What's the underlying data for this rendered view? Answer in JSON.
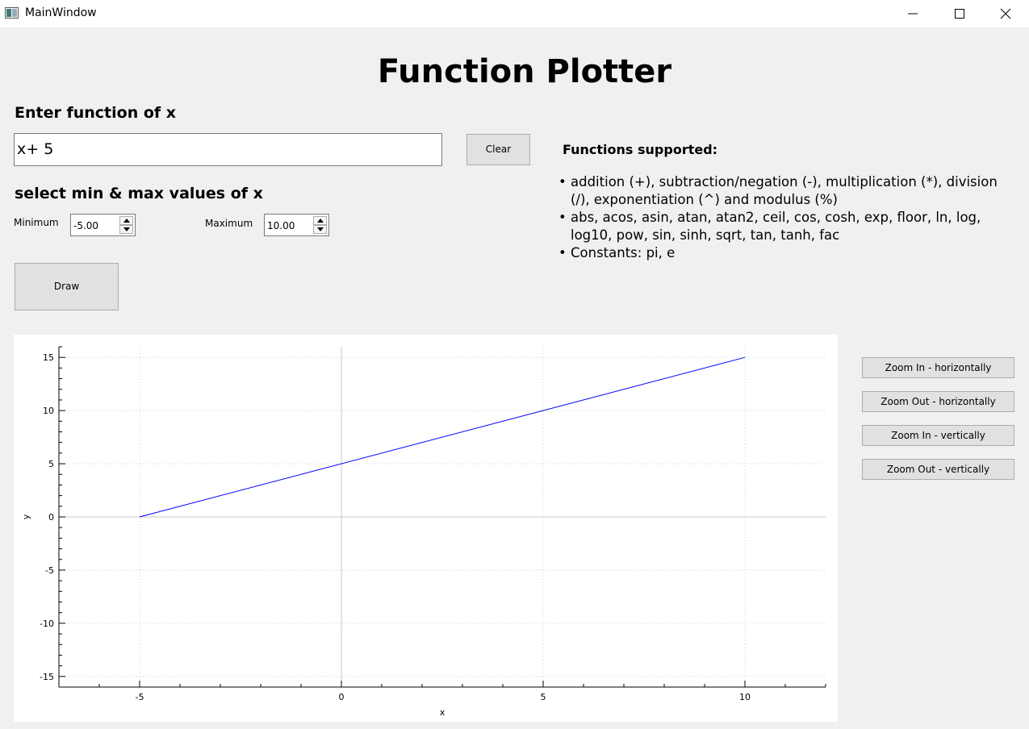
{
  "window": {
    "title": "MainWindow"
  },
  "heading": "Function Plotter",
  "function_section": {
    "label": "Enter function of x",
    "input_value": "x+ 5",
    "clear_label": "Clear"
  },
  "range_section": {
    "label": "select min & max values of x",
    "min_label": "Minimum",
    "min_value": "-5.00",
    "max_label": "Maximum",
    "max_value": "10.00"
  },
  "draw_label": "Draw",
  "functions_supported": {
    "title": "Functions supported:",
    "bullet": "•",
    "items": [
      "addition (+), subtraction/negation (-), multiplication (*), division (/), exponentiation (^) and modulus (%)",
      "abs, acos, asin, atan, atan2, ceil, cos, cosh, exp, floor, ln, log, log10, pow, sin, sinh, sqrt, tan, tanh, fac",
      "Constants: pi, e"
    ]
  },
  "zoom_buttons": [
    "Zoom In - horizontally",
    "Zoom Out - horizontally",
    "Zoom In - vertically",
    "Zoom Out - vertically"
  ],
  "chart_data": {
    "type": "line",
    "title": "",
    "xlabel": "x",
    "ylabel": "y",
    "xlim": [
      -7,
      12
    ],
    "ylim": [
      -16,
      16
    ],
    "xticks": [
      -5,
      0,
      5,
      10
    ],
    "yticks": [
      -15,
      -10,
      -5,
      0,
      5,
      10,
      15
    ],
    "grid": true,
    "series": [
      {
        "x": [
          -5,
          10
        ],
        "y": [
          0,
          15
        ],
        "color": "#0000ff"
      }
    ]
  }
}
